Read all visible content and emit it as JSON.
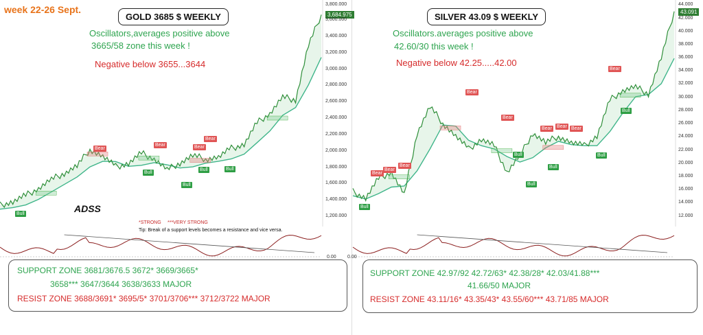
{
  "header": {
    "week": "week 22-26 Sept."
  },
  "gold": {
    "title": "GOLD 3685 $ WEEKLY",
    "osc_line1": "Oscillators,averages positive above",
    "osc_line2": "3665/58 zone this week !",
    "negative": "Negative below 3655...3644",
    "price_tag": "3,684.975",
    "ticks": [
      "3,800.000",
      "3,600.000",
      "3,400.000",
      "3,200.000",
      "3,000.000",
      "2,800.000",
      "2,600.000",
      "2,400.000",
      "2,200.000",
      "2,000.000",
      "1,800.000",
      "1,600.000",
      "1,400.000",
      "1,200.000"
    ],
    "osc_zero": "0.00",
    "support_line1": "SUPPORT ZONE 3681/3676.5     3672*       3669/3665*",
    "support_line2": "3658***      3647/3644      3638/3633 MAJOR",
    "resist_line": "RESIST ZONE 3688/3691*    3695/5*    3701/3706***      3712/3722 MAJOR",
    "legend_strong": "*STRONG",
    "legend_very": "***VERY STRONG",
    "tip": "Tip: Break of a support levels becomes a resistance and vice versa.",
    "logo": "ADSS",
    "markers": [
      {
        "type": "bear",
        "text": "Bear"
      },
      {
        "type": "bear",
        "text": "Bear"
      },
      {
        "type": "bear",
        "text": "Bear"
      },
      {
        "type": "bear",
        "text": "Bear"
      },
      {
        "type": "bull",
        "text": "Bull"
      },
      {
        "type": "bull",
        "text": "Bull"
      },
      {
        "type": "bull",
        "text": "Bull"
      },
      {
        "type": "bull",
        "text": "Bull"
      },
      {
        "type": "bull",
        "text": "Bull"
      }
    ]
  },
  "silver": {
    "title": "SILVER 43.09 $ WEEKLY",
    "osc_line1": "Oscillators.averages positive above",
    "osc_line2": "42.60/30 this week !",
    "negative": "Negative below 42.25.....42.00",
    "price_tag": "43.091",
    "ticks": [
      "44.000",
      "42.000",
      "40.000",
      "38.000",
      "36.000",
      "34.000",
      "32.000",
      "30.000",
      "28.000",
      "26.000",
      "24.000",
      "22.000",
      "20.000",
      "18.000",
      "16.000",
      "14.000",
      "12.000"
    ],
    "osc_zero": "0.00",
    "support_line1": "SUPPORT ZONE 42.97/92      42.72/63*    42.38/28*      42.03/41.88***",
    "support_line2": "41.66/50 MAJOR",
    "resist_line": "RESIST ZONE 43.11/16*     43.35/43*      43.55/60***      43.71/85 MAJOR",
    "markers": [
      {
        "type": "bear",
        "text": "Bear"
      },
      {
        "type": "bear",
        "text": "Bear"
      },
      {
        "type": "bear",
        "text": "Bear"
      },
      {
        "type": "bear",
        "text": "Bear"
      },
      {
        "type": "bear",
        "text": "Bear"
      },
      {
        "type": "bear",
        "text": "Bear"
      },
      {
        "type": "bear",
        "text": "Bear"
      },
      {
        "type": "bear",
        "text": "Bear"
      },
      {
        "type": "bear",
        "text": "Bear"
      },
      {
        "type": "bull",
        "text": "Bull"
      },
      {
        "type": "bull",
        "text": "Bull"
      },
      {
        "type": "bull",
        "text": "Bull"
      },
      {
        "type": "bull",
        "text": "Bull"
      },
      {
        "type": "bull",
        "text": "Bull"
      },
      {
        "type": "bull",
        "text": "Bull"
      }
    ]
  },
  "chart_data": [
    {
      "type": "line",
      "title": "GOLD 3685 $ WEEKLY",
      "ylim": [
        1100,
        3800
      ],
      "x": [
        0,
        4,
        8,
        12,
        16,
        20,
        24,
        28,
        32,
        36,
        40,
        44,
        48,
        52,
        56,
        60,
        64,
        68,
        72,
        76,
        80,
        84,
        88,
        92,
        96,
        100
      ],
      "series": [
        {
          "values": [
            1300,
            1340,
            1420,
            1510,
            1620,
            1700,
            1790,
            2000,
            1910,
            1780,
            1820,
            1950,
            1880,
            1740,
            1830,
            1920,
            1880,
            1900,
            2010,
            2060,
            2330,
            2450,
            2650,
            2620,
            3300,
            3685
          ]
        }
      ]
    },
    {
      "type": "line",
      "title": "SILVER 43.09 $ WEEKLY",
      "ylim": [
        11,
        44
      ],
      "x": [
        0,
        4,
        8,
        12,
        16,
        20,
        24,
        28,
        32,
        36,
        40,
        44,
        48,
        52,
        56,
        60,
        64,
        68,
        72,
        76,
        80,
        84,
        88,
        92,
        96,
        100
      ],
      "series": [
        {
          "values": [
            15.5,
            14.5,
            17.5,
            18.5,
            15.0,
            24.5,
            28.5,
            26.0,
            24.0,
            22.0,
            23.5,
            22.5,
            18.5,
            21.0,
            24.5,
            23.0,
            24.0,
            23.0,
            22.5,
            24.0,
            29.5,
            31.0,
            31.5,
            30.5,
            36.0,
            43.09
          ]
        }
      ]
    }
  ]
}
